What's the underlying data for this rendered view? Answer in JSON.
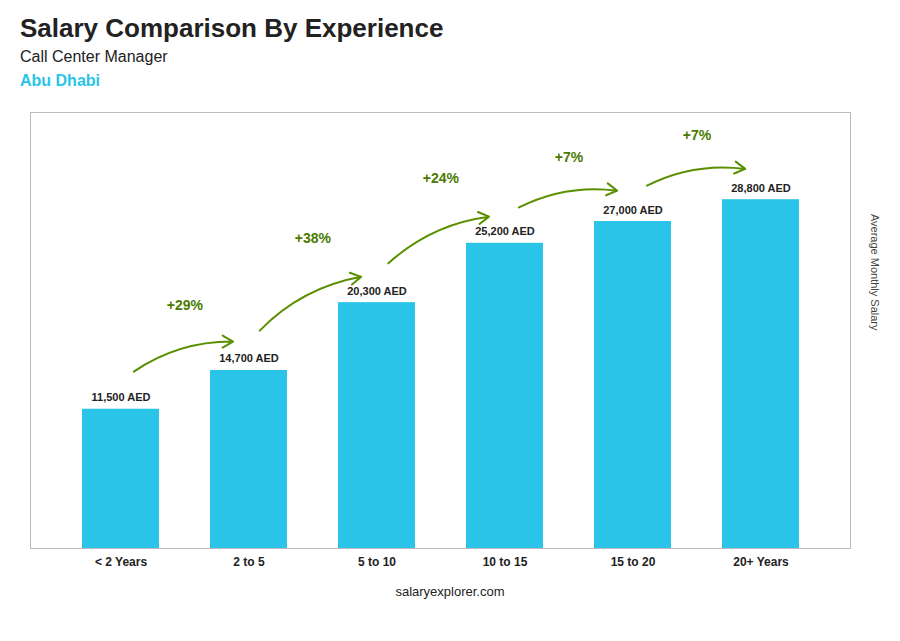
{
  "chart_data": {
    "type": "bar",
    "title": "Salary Comparison By Experience",
    "subtitle": "Call Center Manager",
    "annotations": {
      "city": "Abu Dhabi",
      "footer": "salaryexplorer.com",
      "changes": [
        "+29%",
        "+38%",
        "+24%",
        "+7%",
        "+7%"
      ]
    },
    "categories": [
      "< 2 Years",
      "2 to 5",
      "5 to 10",
      "10 to 15",
      "15 to 20",
      "20+ Years"
    ],
    "values": [
      11500,
      14700,
      20300,
      25200,
      27000,
      28800
    ],
    "value_labels": [
      "11,500 AED",
      "14,700 AED",
      "20,300 AED",
      "25,200 AED",
      "27,000 AED",
      "28,800 AED"
    ],
    "data_labels": true,
    "color": "#29C4E8",
    "ylabel": "Average Monthly Salary",
    "ylim": [
      0,
      36000
    ],
    "tick_labels": "x",
    "grid": false
  }
}
